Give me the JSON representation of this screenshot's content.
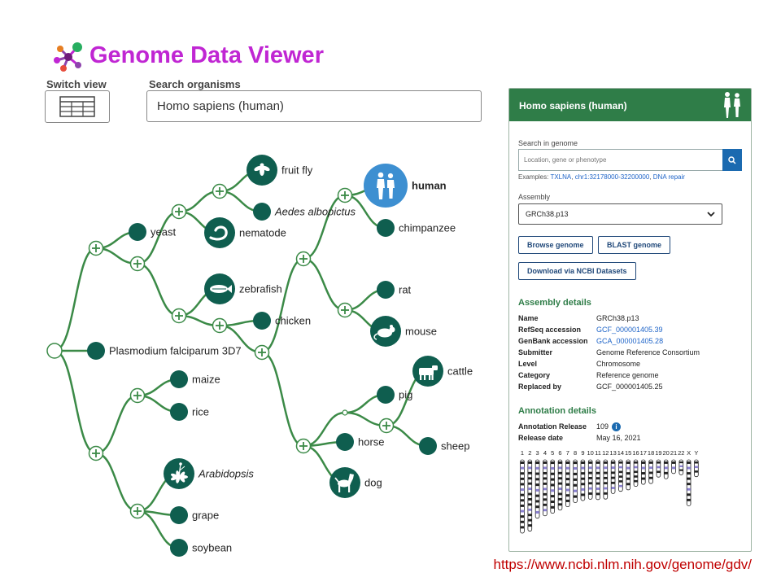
{
  "app": {
    "title": "Genome Data Viewer"
  },
  "controls": {
    "switch_view_label": "Switch view",
    "search_label": "Search organisms",
    "search_value": "Homo sapiens (human)"
  },
  "tree": {
    "organisms": [
      {
        "key": "fruitfly",
        "name": "fruit fly",
        "italic": false,
        "icon": "fruit-fly-icon"
      },
      {
        "key": "aedes",
        "name": "Aedes albopictus",
        "italic": true,
        "icon": ""
      },
      {
        "key": "yeast",
        "name": "yeast",
        "italic": false,
        "icon": ""
      },
      {
        "key": "nematode",
        "name": "nematode",
        "italic": false,
        "icon": "nematode-icon"
      },
      {
        "key": "zebrafish",
        "name": "zebrafish",
        "italic": false,
        "icon": "zebrafish-icon"
      },
      {
        "key": "chicken",
        "name": "chicken",
        "italic": false,
        "icon": ""
      },
      {
        "key": "plasmodium",
        "name": "Plasmodium falciparum 3D7",
        "italic": false,
        "icon": ""
      },
      {
        "key": "human",
        "name": "human",
        "italic": false,
        "bold": true,
        "selected": true,
        "icon": "human-icon"
      },
      {
        "key": "chimpanzee",
        "name": "chimpanzee",
        "italic": false,
        "icon": ""
      },
      {
        "key": "rat",
        "name": "rat",
        "italic": false,
        "icon": ""
      },
      {
        "key": "mouse",
        "name": "mouse",
        "italic": false,
        "icon": "mouse-icon"
      },
      {
        "key": "cattle",
        "name": "cattle",
        "italic": false,
        "icon": "cattle-icon"
      },
      {
        "key": "pig",
        "name": "pig",
        "italic": false,
        "icon": ""
      },
      {
        "key": "horse",
        "name": "horse",
        "italic": false,
        "icon": ""
      },
      {
        "key": "sheep",
        "name": "sheep",
        "italic": false,
        "icon": ""
      },
      {
        "key": "dog",
        "name": "dog",
        "italic": false,
        "icon": "dog-icon"
      },
      {
        "key": "maize",
        "name": "maize",
        "italic": false,
        "icon": ""
      },
      {
        "key": "rice",
        "name": "rice",
        "italic": false,
        "icon": ""
      },
      {
        "key": "arabidopsis",
        "name": "Arabidopsis",
        "italic": true,
        "icon": "arabidopsis-icon"
      },
      {
        "key": "grape",
        "name": "grape",
        "italic": false,
        "icon": ""
      },
      {
        "key": "soybean",
        "name": "soybean",
        "italic": false,
        "icon": ""
      }
    ],
    "colors": {
      "branch": "#3b8a47",
      "node": "#0f5e4f",
      "selected": "#3d8fd1"
    }
  },
  "panel": {
    "title": "Homo sapiens (human)",
    "header_icon": "human-icon",
    "search_label": "Search in genome",
    "search_placeholder": "Location, gene or phenotype",
    "examples_label": "Examples:",
    "examples": [
      "TXLNA",
      "chr1:32178000-32200000",
      "DNA repair"
    ],
    "assembly_label": "Assembly",
    "assembly_value": "GRCh38.p13",
    "browse_button": "Browse genome",
    "blast_button": "BLAST genome",
    "download_button": "Download via NCBI Datasets",
    "assembly_details_title": "Assembly details",
    "assembly_details": [
      {
        "k": "Name",
        "v": "GRCh38.p13",
        "link": false
      },
      {
        "k": "RefSeq accession",
        "v": "GCF_000001405.39",
        "link": true
      },
      {
        "k": "GenBank accession",
        "v": "GCA_000001405.28",
        "link": true
      },
      {
        "k": "Submitter",
        "v": "Genome Reference Consortium",
        "link": false
      },
      {
        "k": "Level",
        "v": "Chromosome",
        "link": false
      },
      {
        "k": "Category",
        "v": "Reference genome",
        "link": false
      },
      {
        "k": "Replaced by",
        "v": "GCF_000001405.25",
        "link": false
      }
    ],
    "annotation_details_title": "Annotation details",
    "annotation": [
      {
        "k": "Annotation Release",
        "v": "109",
        "info": true
      },
      {
        "k": "Release date",
        "v": "May 16, 2021",
        "info": false
      }
    ],
    "chromosomes": [
      "1",
      "2",
      "3",
      "4",
      "5",
      "6",
      "7",
      "8",
      "9",
      "10",
      "11",
      "12",
      "13",
      "14",
      "15",
      "16",
      "17",
      "18",
      "19",
      "20",
      "21",
      "22",
      "X",
      "Y"
    ],
    "chromosome_lengths": [
      248.9,
      242.2,
      198.3,
      190.2,
      181.5,
      170.8,
      159.3,
      145.1,
      138.4,
      133.8,
      135.1,
      133.3,
      114.4,
      107.0,
      102.0,
      90.3,
      83.3,
      80.4,
      58.6,
      64.4,
      46.7,
      50.8,
      156.0,
      57.2
    ],
    "colors": {
      "header": "#2f7d48",
      "link": "#1e64c8",
      "button_border": "#21497a"
    }
  },
  "footer": {
    "url": "https://www.ncbi.nlm.nih.gov/genome/gdv/"
  }
}
